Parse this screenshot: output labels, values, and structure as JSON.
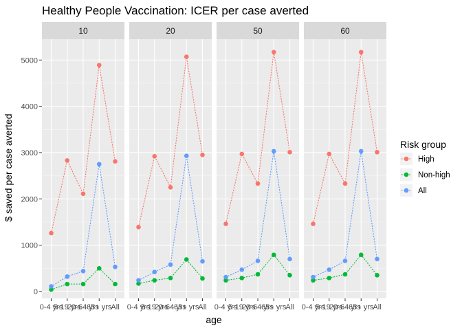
{
  "chart_data": {
    "type": "line",
    "title": "Healthy People Vaccination: ICER per case averted",
    "xlabel": "age",
    "ylabel": "$ saved per case averted",
    "categories": [
      "0-4 yrs",
      "5-19 yrs",
      "20-64 yrs",
      "65+ yrs",
      "All"
    ],
    "y_ticks": [
      0,
      1000,
      2000,
      3000,
      4000,
      5000
    ],
    "ylim": [
      -150,
      5450
    ],
    "grid": true,
    "line_style": "dotted",
    "legend": {
      "title": "Risk group",
      "placement": "right"
    },
    "facets": [
      {
        "label": "10",
        "series": [
          {
            "name": "High",
            "values": [
              1260,
              2830,
              2110,
              4890,
              2810
            ]
          },
          {
            "name": "Non-high",
            "values": [
              40,
              160,
              160,
              500,
              160
            ]
          },
          {
            "name": "All",
            "values": [
              110,
              320,
              440,
              2750,
              530
            ]
          }
        ]
      },
      {
        "label": "20",
        "series": [
          {
            "name": "High",
            "values": [
              1390,
              2920,
              2250,
              5070,
              2950
            ]
          },
          {
            "name": "Non-high",
            "values": [
              170,
              240,
              290,
              690,
              280
            ]
          },
          {
            "name": "All",
            "values": [
              240,
              420,
              580,
              2930,
              650
            ]
          }
        ]
      },
      {
        "label": "50",
        "series": [
          {
            "name": "High",
            "values": [
              1460,
              2970,
              2330,
              5170,
              3010
            ]
          },
          {
            "name": "Non-high",
            "values": [
              240,
              290,
              370,
              790,
              350
            ]
          },
          {
            "name": "All",
            "values": [
              310,
              470,
              660,
              3030,
              700
            ]
          }
        ]
      },
      {
        "label": "60",
        "series": [
          {
            "name": "High",
            "values": [
              1460,
              2970,
              2330,
              5170,
              3010
            ]
          },
          {
            "name": "Non-high",
            "values": [
              240,
              290,
              370,
              790,
              350
            ]
          },
          {
            "name": "All",
            "values": [
              310,
              470,
              660,
              3030,
              700
            ]
          }
        ]
      }
    ]
  },
  "colors": {
    "High": "#f8766d",
    "Non-high": "#00ba38",
    "All": "#619cff",
    "panel_bg": "#ebebeb",
    "strip_bg": "#d9d9d9",
    "grid_major": "#ffffff"
  }
}
